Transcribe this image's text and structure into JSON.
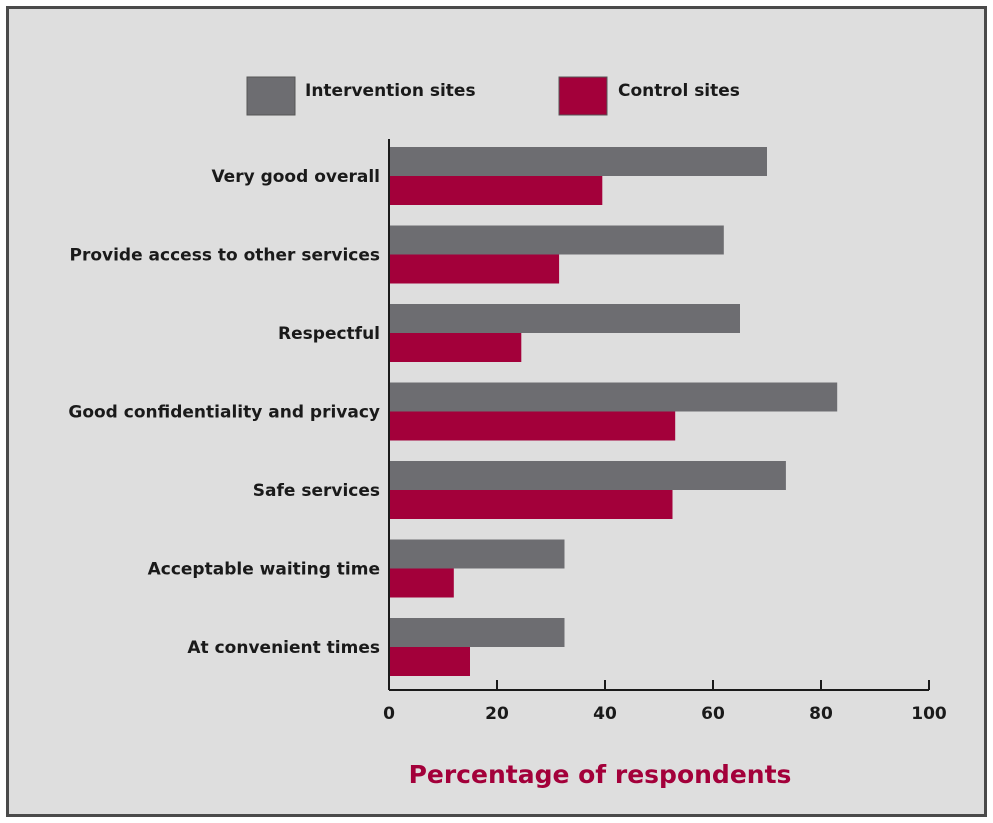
{
  "chart_data": {
    "type": "bar",
    "orientation": "horizontal",
    "categories": [
      "Very good overall",
      "Provide access to other services",
      "Respectful",
      "Good confidentiality and privacy",
      "Safe services",
      "Acceptable waiting time",
      "At convenient times"
    ],
    "series": [
      {
        "name": "Intervention sites",
        "color": "#6d6d71",
        "values": [
          70,
          62,
          65,
          83,
          73.5,
          32.5,
          32.5
        ]
      },
      {
        "name": "Control sites",
        "color": "#a3003a",
        "values": [
          39.5,
          31.5,
          24.5,
          53,
          52.5,
          12,
          15
        ]
      }
    ],
    "xlabel": "Percentage of respondents",
    "xlabel_color": "#a3003a",
    "xlim": [
      0,
      100
    ],
    "xticks": [
      "0",
      "20",
      "40",
      "60",
      "80",
      "100"
    ],
    "grid": false,
    "legend_position": "top"
  }
}
